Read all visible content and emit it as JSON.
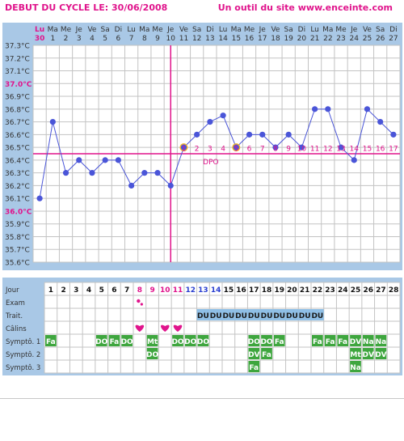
{
  "header": {
    "title": "DEBUT DU CYCLE LE: 30/06/2008",
    "site": "Un outil du site www.enceinte.com"
  },
  "colors": {
    "panel": "#a9c8e6",
    "accent": "#e0148c",
    "point": "#4a55d8",
    "line": "#4a55d8",
    "dpo_circle": "#f5b220",
    "green": "#3ea63e",
    "blue_cell": "#8fbfe6",
    "heart": "#e0148c"
  },
  "chart_data": {
    "type": "line",
    "title": "DEBUT DU CYCLE LE: 30/06/2008",
    "days": [
      "Lu",
      "Ma",
      "Me",
      "Je",
      "Ve",
      "Sa",
      "Di",
      "Lu",
      "Ma",
      "Me",
      "Je",
      "Ve",
      "Sa",
      "Di",
      "Lu",
      "Ma",
      "Me",
      "Je",
      "Ve",
      "Sa",
      "Di",
      "Lu",
      "Ma",
      "Me",
      "Je",
      "Ve",
      "Sa",
      "Di"
    ],
    "dates": [
      "30",
      "1",
      "2",
      "3",
      "4",
      "5",
      "6",
      "7",
      "8",
      "9",
      "10",
      "11",
      "12",
      "13",
      "14",
      "15",
      "16",
      "17",
      "18",
      "19",
      "20",
      "21",
      "22",
      "23",
      "24",
      "25",
      "26",
      "27"
    ],
    "values": [
      36.1,
      36.7,
      36.3,
      36.4,
      36.3,
      36.4,
      36.4,
      36.2,
      36.3,
      36.3,
      36.2,
      36.5,
      36.6,
      36.7,
      36.75,
      36.5,
      36.6,
      36.6,
      36.5,
      36.6,
      36.5,
      36.8,
      36.8,
      36.5,
      36.4,
      36.8,
      36.7,
      36.6
    ],
    "ylim": [
      35.6,
      37.3
    ],
    "yticks": [
      "37.3°C",
      "37.2°C",
      "37.1°C",
      "37.0°C",
      "36.9°C",
      "36.8°C",
      "36.7°C",
      "36.6°C",
      "36.5°C",
      "36.4°C",
      "36.3°C",
      "36.2°C",
      "36.1°C",
      "36.0°C",
      "35.9°C",
      "35.8°C",
      "35.7°C",
      "35.6°C"
    ],
    "coverline": 36.45,
    "ovulation_index": 10,
    "dpo_labels": [
      "1",
      "2",
      "3",
      "4",
      "5",
      "6",
      "7",
      "8",
      "9",
      "10",
      "11",
      "12",
      "13",
      "14",
      "15",
      "16",
      "17"
    ],
    "dpo_text": "DPO",
    "dpo_circled": [
      1,
      5
    ],
    "grid": true
  },
  "table": {
    "row_labels": [
      "Jour",
      "Exam",
      "Trait.",
      "Câlins",
      "Symptô. 1",
      "Symptô. 2",
      "Symptô. 3"
    ],
    "days": [
      "1",
      "2",
      "3",
      "4",
      "5",
      "6",
      "7",
      "8",
      "9",
      "10",
      "11",
      "12",
      "13",
      "14",
      "15",
      "16",
      "17",
      "18",
      "19",
      "20",
      "21",
      "22",
      "23",
      "24",
      "25",
      "26",
      "27",
      "28"
    ],
    "pink_days": [
      8,
      9,
      10,
      11
    ],
    "blue_days": [
      12,
      13,
      14
    ],
    "exam_drop_day": 8,
    "traitement": {
      "start_day": 13,
      "end_day": 22,
      "label": "DU"
    },
    "calins_days": [
      8,
      10,
      11
    ],
    "symptom1": [
      {
        "day": 1,
        "text": "Fa"
      },
      {
        "day": 5,
        "text": "DO"
      },
      {
        "day": 6,
        "text": "Fa"
      },
      {
        "day": 7,
        "text": "DO"
      },
      {
        "day": 9,
        "text": "Mt"
      },
      {
        "day": 11,
        "text": "DO"
      },
      {
        "day": 12,
        "text": "DO"
      },
      {
        "day": 13,
        "text": "DO"
      },
      {
        "day": 17,
        "text": "DO"
      },
      {
        "day": 18,
        "text": "DO"
      },
      {
        "day": 19,
        "text": "Fa"
      },
      {
        "day": 22,
        "text": "Fa"
      },
      {
        "day": 23,
        "text": "Fa"
      },
      {
        "day": 24,
        "text": "Fa"
      },
      {
        "day": 25,
        "text": "DV"
      },
      {
        "day": 26,
        "text": "Na"
      },
      {
        "day": 27,
        "text": "Na"
      }
    ],
    "symptom2": [
      {
        "day": 9,
        "text": "DO"
      },
      {
        "day": 17,
        "text": "DV"
      },
      {
        "day": 18,
        "text": "Fa"
      },
      {
        "day": 25,
        "text": "Mt"
      },
      {
        "day": 26,
        "text": "DV"
      },
      {
        "day": 27,
        "text": "DV"
      }
    ],
    "symptom3": [
      {
        "day": 17,
        "text": "Fa"
      },
      {
        "day": 25,
        "text": "Na"
      }
    ]
  }
}
